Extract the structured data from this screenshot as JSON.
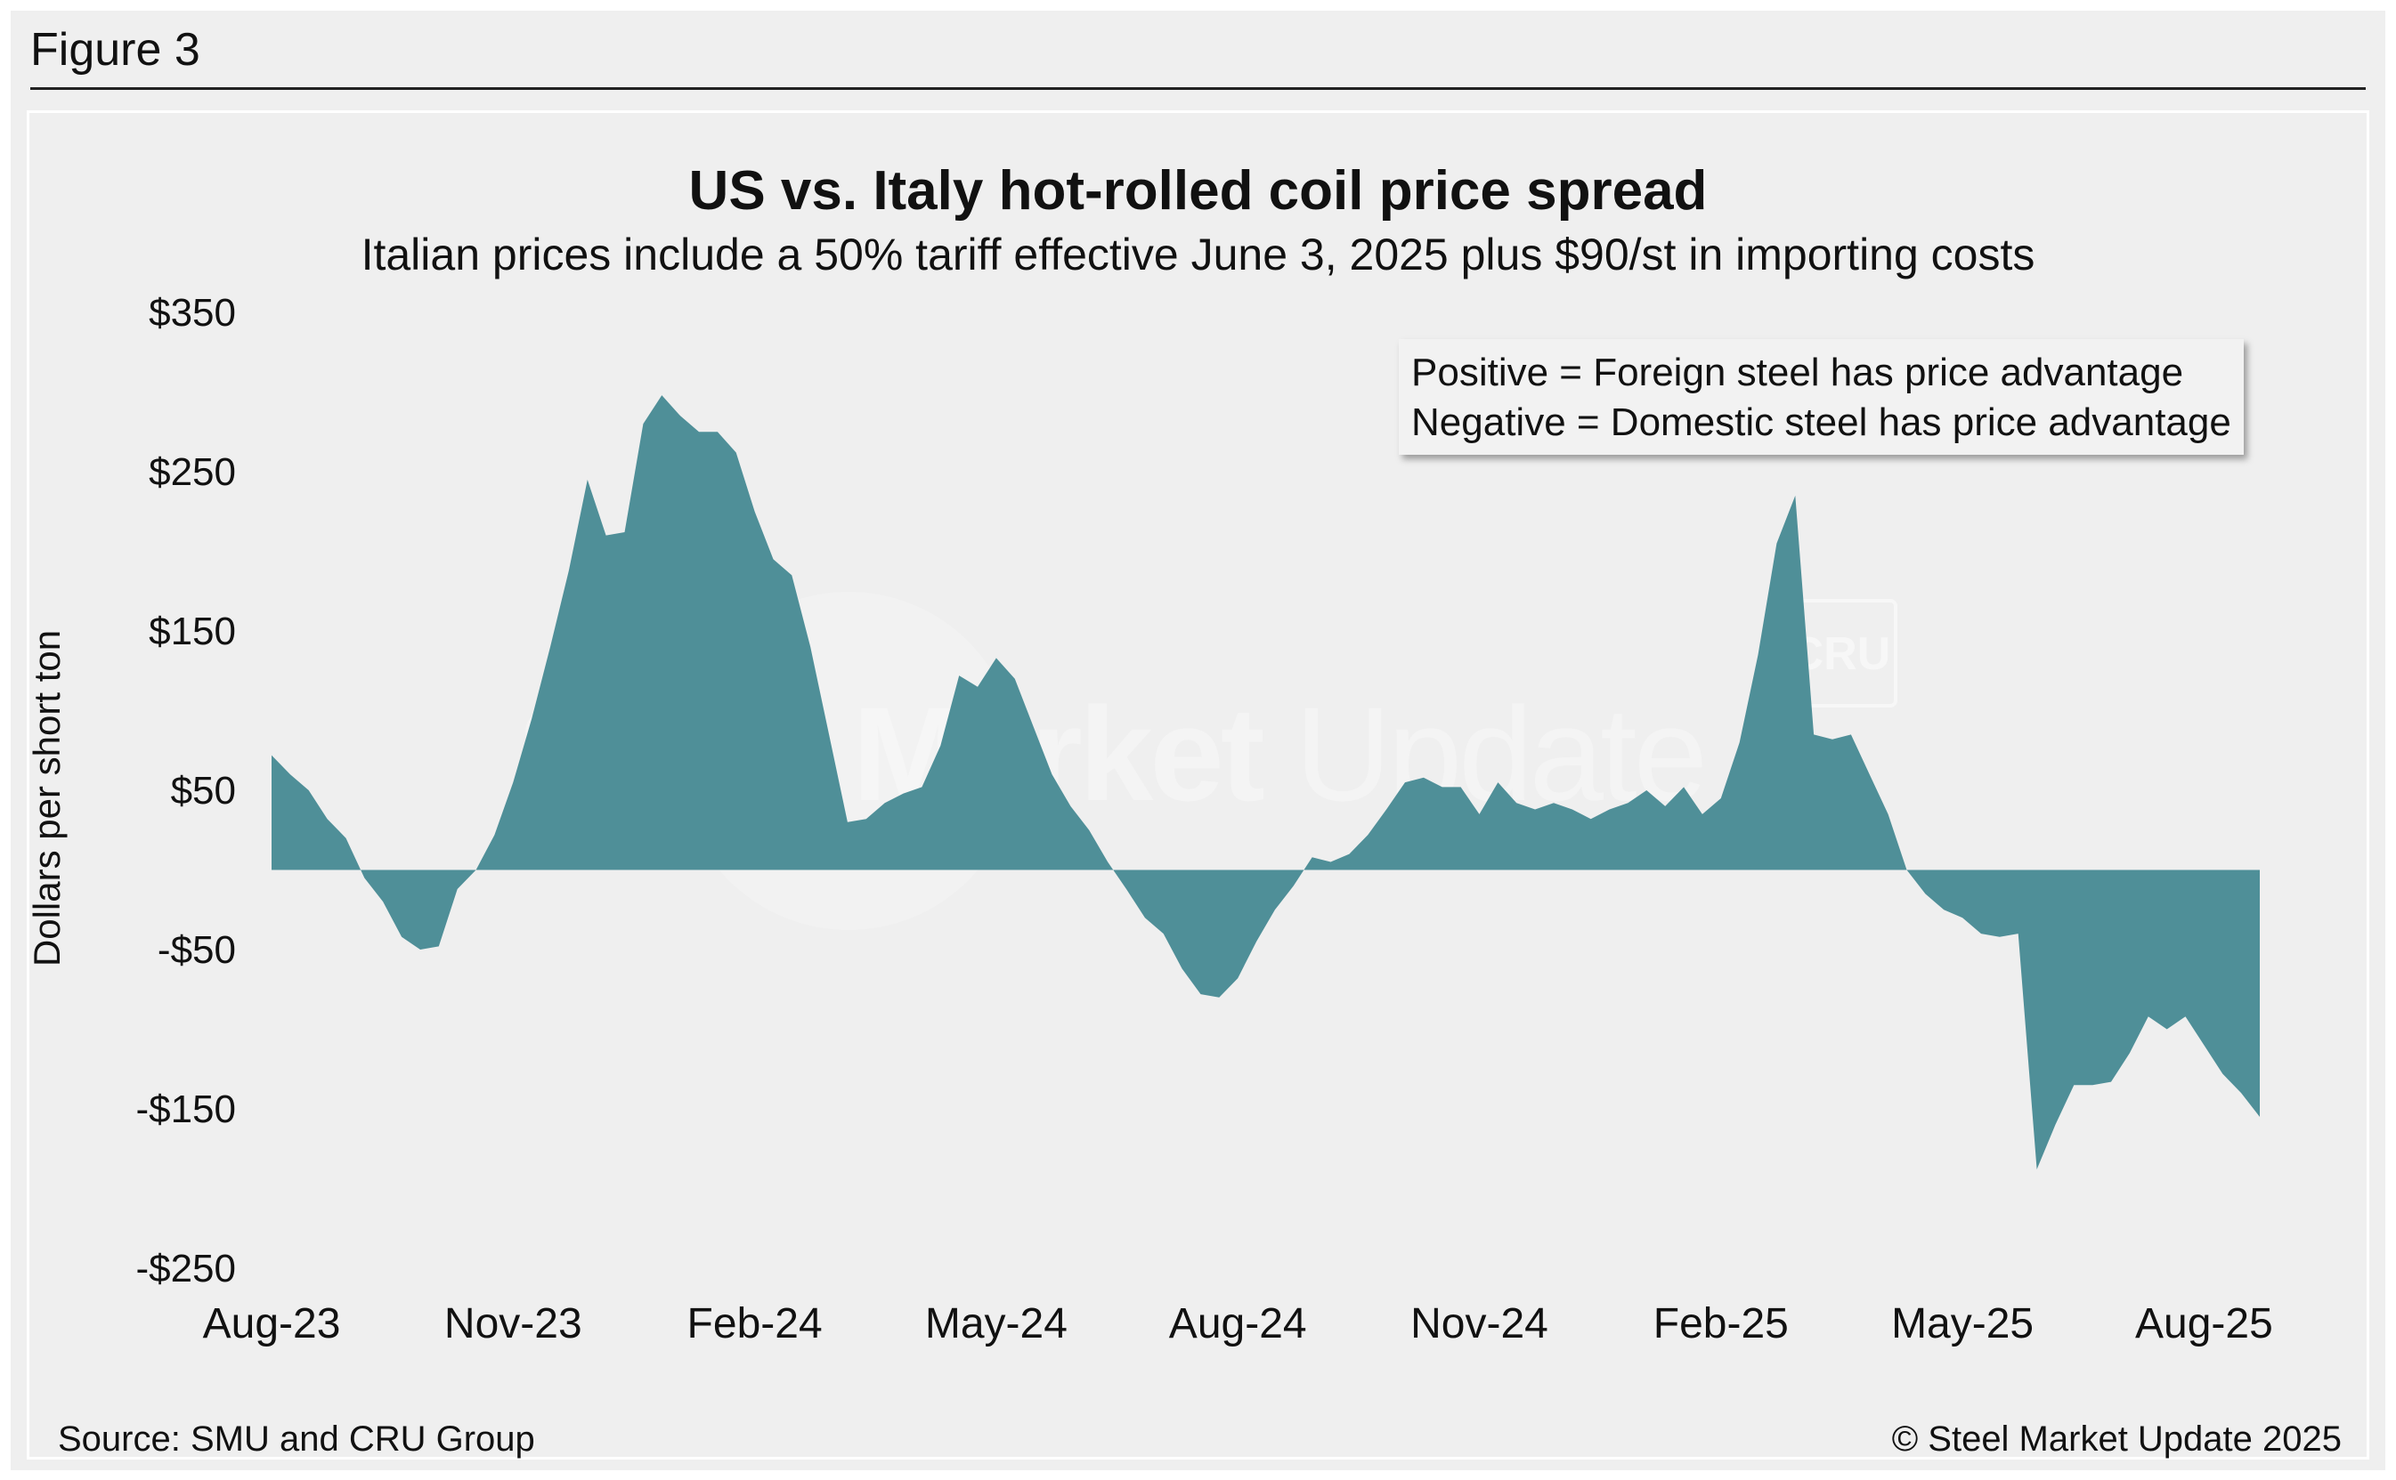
{
  "figure_label": "Figure 3",
  "source": "Source: SMU and CRU Group",
  "copyright": "© Steel Market Update 2025",
  "watermark": {
    "text_bold": "Steel Market",
    "text_light": "Update",
    "logo_text": "CRU"
  },
  "legend_note": {
    "line1": "Positive = Foreign steel has price advantage",
    "line2": "Negative = Domestic steel has price advantage"
  },
  "colors": {
    "area_fill": "#4f8f98",
    "background": "#efefef",
    "text": "#111111"
  },
  "chart_data": {
    "type": "area",
    "title": "US vs. Italy hot-rolled coil price spread",
    "subtitle": "Italian prices include a 50% tariff effective June 3, 2025 plus $90/st in importing costs",
    "xlabel": "",
    "ylabel": "Dollars per short ton",
    "ylim": [
      -250,
      350
    ],
    "y_ticks": [
      350,
      250,
      150,
      50,
      -50,
      -150,
      -250
    ],
    "y_tick_labels": [
      "$350",
      "$250",
      "$150",
      "$50",
      "-$50",
      "-$150",
      "-$250"
    ],
    "x_tick_labels": [
      "Aug-23",
      "Nov-23",
      "Feb-24",
      "May-24",
      "Aug-24",
      "Nov-24",
      "Feb-25",
      "May-25",
      "Aug-25"
    ],
    "x_unit": "weeks from Aug-23 (ticks every 13 weeks)",
    "grid": false,
    "legend": "top-right note",
    "series": [
      {
        "x": [
          0,
          1,
          2,
          3,
          4,
          5,
          6,
          7,
          8,
          9,
          10,
          11,
          12,
          13,
          14,
          15,
          16,
          17,
          18,
          19,
          20,
          21,
          22,
          23,
          24,
          25,
          26,
          27,
          28,
          29,
          30,
          31,
          32,
          33,
          34,
          35,
          36,
          37,
          38,
          39,
          40,
          41,
          42,
          43,
          44,
          45,
          46,
          47,
          48,
          49,
          50,
          51,
          52,
          53,
          54,
          55,
          56,
          57,
          58,
          59,
          60,
          61,
          62,
          63,
          64,
          65,
          66,
          67,
          68,
          69,
          70,
          71,
          72,
          73,
          74,
          75,
          76,
          77,
          78,
          79,
          80,
          81,
          82,
          83,
          84,
          85,
          86,
          87,
          88,
          89,
          90,
          91,
          92,
          93,
          94,
          95,
          96,
          97,
          98,
          99,
          100,
          101,
          102,
          103,
          104,
          105,
          106,
          107
        ],
        "values": [
          72,
          60,
          50,
          32,
          20,
          -5,
          -20,
          -42,
          -50,
          -48,
          -12,
          0,
          22,
          55,
          95,
          140,
          188,
          245,
          210,
          212,
          280,
          298,
          285,
          275,
          275,
          262,
          225,
          195,
          185,
          140,
          85,
          30,
          32,
          42,
          48,
          52,
          78,
          122,
          115,
          133,
          120,
          90,
          60,
          40,
          25,
          5,
          -12,
          -30,
          -40,
          -62,
          -78,
          -80,
          -68,
          -45,
          -25,
          -10,
          8,
          5,
          10,
          22,
          38,
          55,
          58,
          52,
          52,
          35,
          55,
          42,
          38,
          42,
          38,
          32,
          38,
          42,
          50,
          40,
          52,
          35,
          45,
          80,
          135,
          205,
          235,
          85,
          82,
          85,
          60,
          35,
          0,
          -15,
          -25,
          -30,
          -40,
          -42,
          -40,
          -188,
          -160,
          -135,
          -135,
          -133,
          -115,
          -92,
          -100,
          -92,
          -110,
          -128,
          -140,
          -155
        ]
      }
    ]
  }
}
